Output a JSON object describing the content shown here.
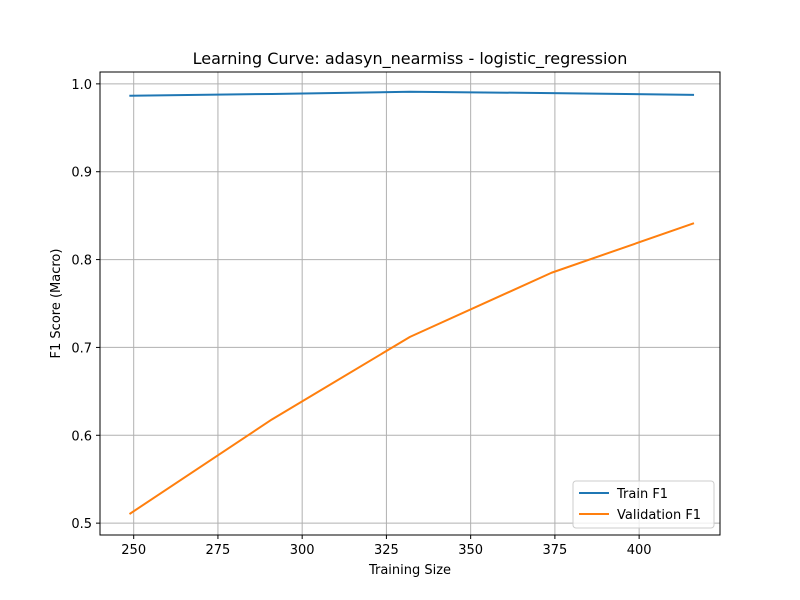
{
  "chart_data": {
    "type": "line",
    "title": "Learning Curve: adasyn_nearmiss - logistic_regression",
    "xlabel": "Training Size",
    "ylabel": "F1 Score (Macro)",
    "xlim": [
      240,
      424
    ],
    "ylim": [
      0.4865,
      1.0135
    ],
    "x_ticks": [
      250,
      275,
      300,
      325,
      350,
      375,
      400
    ],
    "y_ticks": [
      0.5,
      0.6,
      0.7,
      0.8,
      0.9,
      1.0
    ],
    "x_tick_labels": [
      "250",
      "275",
      "300",
      "325",
      "350",
      "375",
      "400"
    ],
    "y_tick_labels": [
      "0.5",
      "0.6",
      "0.7",
      "0.8",
      "0.9",
      "1.0"
    ],
    "grid": true,
    "legend_position": "lower-right",
    "series": [
      {
        "name": "Train F1",
        "color": "#1f77b4",
        "x": [
          249,
          291,
          332,
          374,
          416
        ],
        "y": [
          0.9865,
          0.9885,
          0.991,
          0.9895,
          0.9875
        ]
      },
      {
        "name": "Validation F1",
        "color": "#ff7f0e",
        "x": [
          249,
          291,
          332,
          374,
          416
        ],
        "y": [
          0.511,
          0.618,
          0.712,
          0.785,
          0.841
        ]
      }
    ]
  }
}
